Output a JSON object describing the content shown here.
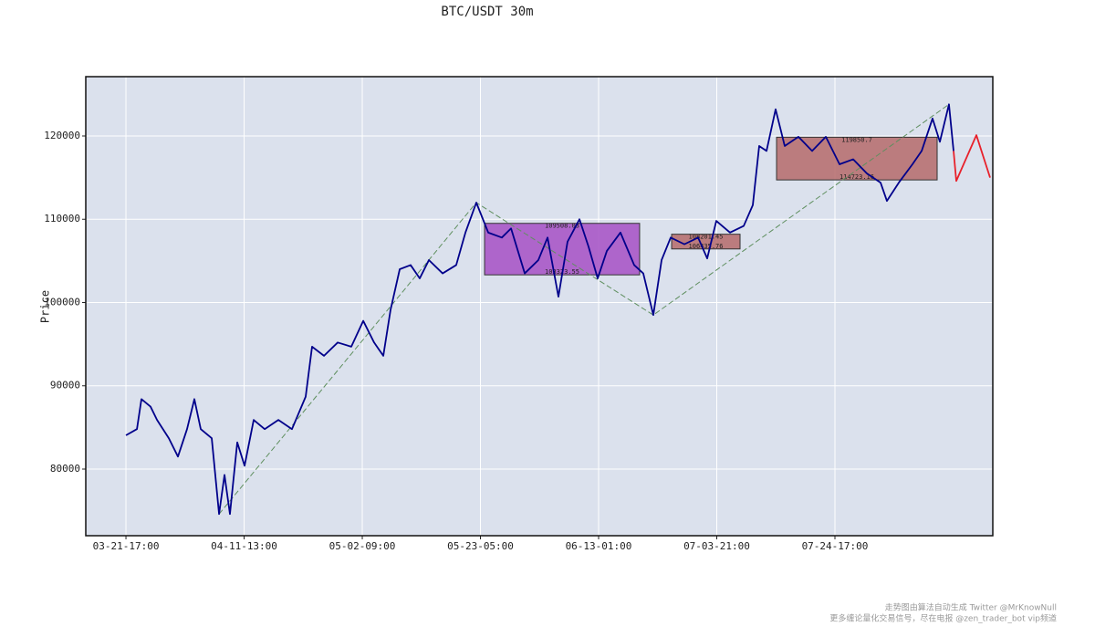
{
  "chart_data": {
    "type": "line",
    "title": "BTC/USDT 30m",
    "y_label": "Price",
    "xlim": [
      -340,
      7336
    ],
    "ylim": [
      72000,
      127123
    ],
    "xticks": [
      {
        "value": 0,
        "label": "03-21-17:00"
      },
      {
        "value": 1000,
        "label": "04-11-13:00"
      },
      {
        "value": 2000,
        "label": "05-02-09:00"
      },
      {
        "value": 3000,
        "label": "05-23-05:00"
      },
      {
        "value": 4000,
        "label": "06-13-01:00"
      },
      {
        "value": 5000,
        "label": "07-03-21:00"
      },
      {
        "value": 6000,
        "label": "07-24-17:00"
      }
    ],
    "yticks": [
      80000,
      90000,
      100000,
      110000,
      120000
    ],
    "grid": true,
    "background": "#dbe1ed",
    "zones": [
      {
        "x": [
          3035,
          4347
        ],
        "values": [
          109508.03,
          103323.55
        ],
        "value_labels": [
          "109508.03",
          "103323.55"
        ],
        "color": "#a64fc4"
      },
      {
        "x": [
          4618,
          5197
        ],
        "values": [
          108201.45,
          106435.76
        ],
        "value_labels": [
          "108201.45",
          "106435.76"
        ],
        "color": "#b56a6a"
      },
      {
        "x": [
          5506,
          6865
        ],
        "values": [
          119850.7,
          114723.16
        ],
        "value_labels": [
          "119850.7",
          "114723.16"
        ],
        "color": "#b56a6a"
      }
    ],
    "series": [
      {
        "color": "#5f8f5f",
        "dashed": true,
        "x": [
          788,
          2965,
          4463,
          6965
        ],
        "values": [
          74600,
          112000,
          98500,
          123800
        ]
      },
      {
        "color": "#00008b",
        "x": [
          0,
          93,
          131,
          208,
          263,
          363,
          440,
          517,
          579,
          633,
          726,
          788,
          834,
          880,
          942,
          1004,
          1081,
          1174,
          1290,
          1405,
          1521,
          1575,
          1676,
          1792,
          1907,
          2008,
          2100,
          2178,
          2239,
          2317,
          2409,
          2486,
          2564,
          2680,
          2795,
          2873,
          2965,
          3066,
          3181,
          3259,
          3375,
          3490,
          3568,
          3660,
          3737,
          3838,
          3915,
          3992,
          4070,
          4185,
          4301,
          4378,
          4463,
          4533,
          4610,
          4726,
          4842,
          4919,
          4996,
          5112,
          5228,
          5305,
          5359,
          5421,
          5498,
          5575,
          5691,
          5807,
          5923,
          6039,
          6154,
          6270,
          6386,
          6440,
          6541,
          6656,
          6734,
          6826,
          6888,
          6965,
          7004
        ],
        "values": [
          84055,
          84800,
          88400,
          87500,
          85900,
          83700,
          81500,
          84800,
          88400,
          84800,
          83700,
          74600,
          79300,
          74600,
          83200,
          80400,
          85900,
          84800,
          85900,
          84800,
          88700,
          94700,
          93600,
          95200,
          94700,
          97800,
          95200,
          93600,
          99100,
          104000,
          104500,
          102900,
          105100,
          103500,
          104500,
          108400,
          112000,
          108400,
          107800,
          108900,
          103500,
          105100,
          107800,
          100700,
          107300,
          110000,
          106700,
          102900,
          106200,
          108400,
          104500,
          103500,
          98500,
          105100,
          107800,
          107000,
          107800,
          105300,
          109800,
          108400,
          109200,
          111700,
          118800,
          118200,
          123200,
          118800,
          119900,
          118200,
          119900,
          116600,
          117200,
          115500,
          114400,
          112200,
          114400,
          116600,
          118200,
          122100,
          119300,
          123800,
          118200
        ]
      },
      {
        "color": "#e8212b",
        "x": [
          7004,
          7027,
          7197,
          7313
        ],
        "values": [
          118200,
          114600,
          120100,
          115000
        ]
      }
    ],
    "footer": [
      "走势图由算法自动生成  Twitter @MrKnowNull",
      "更多缠论量化交易信号，尽在电报 @zen_trader_bot vip频道"
    ]
  }
}
